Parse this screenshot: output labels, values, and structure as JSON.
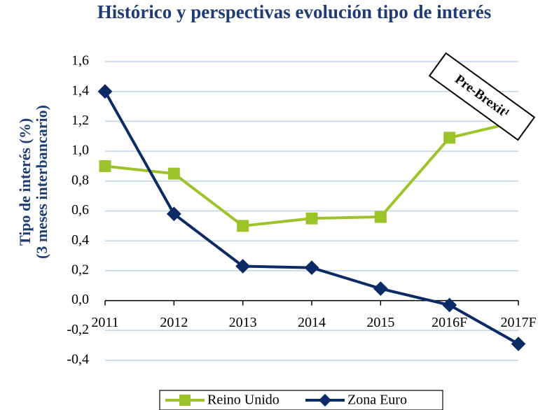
{
  "chart_data": {
    "type": "line",
    "title": "Histórico y perspectivas evolución tipo de interés",
    "ylabel": [
      "Tipo de interés (%)",
      "(3 meses interbancario)"
    ],
    "categories": [
      "2011",
      "2012",
      "2013",
      "2014",
      "2015",
      "2016F",
      "2017F"
    ],
    "series": [
      {
        "name": "Reino Unido",
        "color": "#9dc32a",
        "marker": "square",
        "values": [
          0.9,
          0.85,
          0.5,
          0.55,
          0.56,
          1.09,
          1.2
        ]
      },
      {
        "name": "Zona Euro",
        "color": "#0c2a66",
        "marker": "diamond",
        "values": [
          1.4,
          0.58,
          0.23,
          0.22,
          0.08,
          -0.03,
          -0.29
        ]
      }
    ],
    "ylim": [
      -0.4,
      1.6
    ],
    "yticks": [
      {
        "value": -0.4,
        "label": "-0,4"
      },
      {
        "value": -0.2,
        "label": "-0,2"
      },
      {
        "value": 0,
        "label": "0,0"
      },
      {
        "value": 0.2,
        "label": "0,2"
      },
      {
        "value": 0.4,
        "label": "0,4"
      },
      {
        "value": 0.6,
        "label": "0,6"
      },
      {
        "value": 0.8,
        "label": "0,8"
      },
      {
        "value": 1.0,
        "label": "1,0"
      },
      {
        "value": 1.2,
        "label": "1,2"
      },
      {
        "value": 1.4,
        "label": "1,4"
      },
      {
        "value": 1.6,
        "label": "1,6"
      }
    ],
    "grid": true,
    "annotation": "Pre-Brexit¹",
    "legend": "bottom"
  }
}
